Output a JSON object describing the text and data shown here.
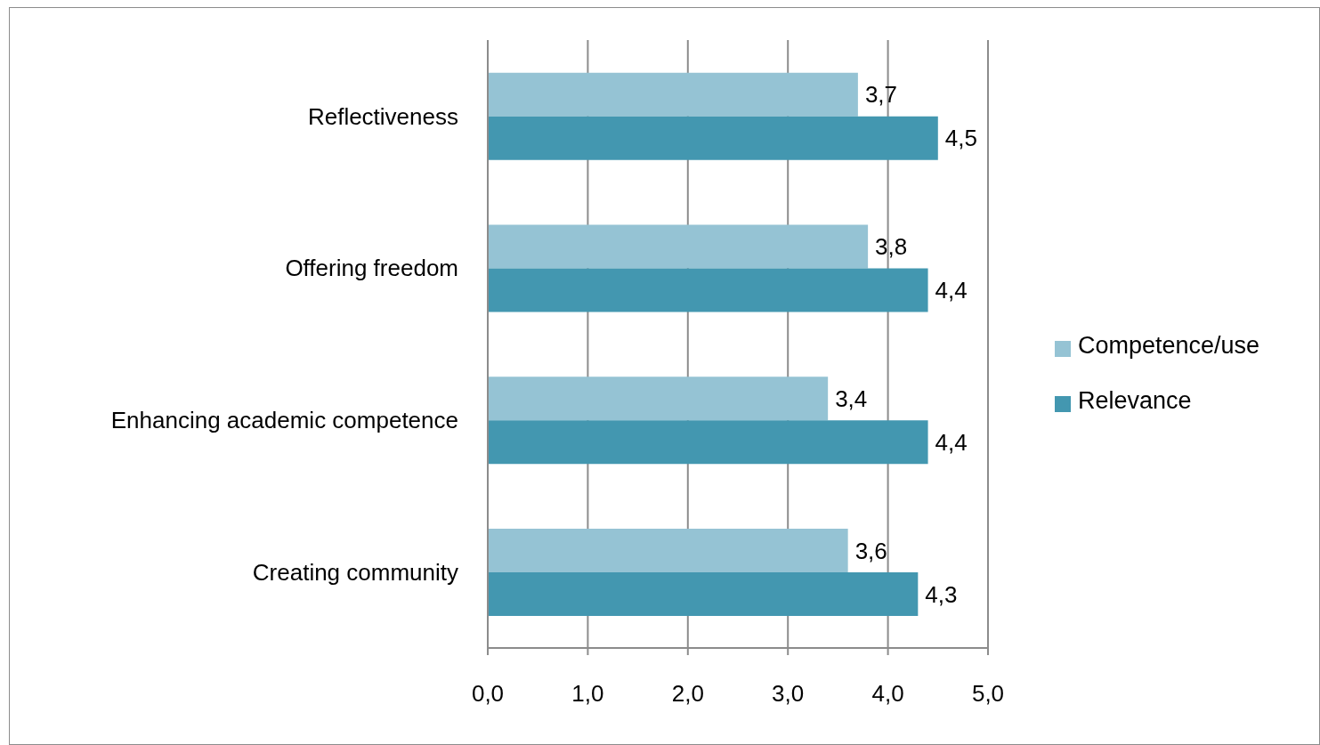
{
  "chart_data": {
    "type": "bar",
    "orientation": "horizontal",
    "categories": [
      "Reflectiveness",
      "Offering freedom",
      "Enhancing academic competence",
      "Creating community"
    ],
    "series": [
      {
        "name": "Competence/use",
        "color": "#95c3d4",
        "values": [
          3.7,
          3.8,
          3.4,
          3.6
        ],
        "value_labels": [
          "3,7",
          "3,8",
          "3,4",
          "3,6"
        ]
      },
      {
        "name": "Relevance",
        "color": "#4397b0",
        "values": [
          4.5,
          4.4,
          4.4,
          4.3
        ],
        "value_labels": [
          "4,5",
          "4,4",
          "4,4",
          "4,3"
        ]
      }
    ],
    "xlim": [
      0,
      5
    ],
    "xticks": [
      {
        "value": 0,
        "label": "0,0"
      },
      {
        "value": 1,
        "label": "1,0"
      },
      {
        "value": 2,
        "label": "2,0"
      },
      {
        "value": 3,
        "label": "3,0"
      },
      {
        "value": 4,
        "label": "4,0"
      },
      {
        "value": 5,
        "label": "5,0"
      }
    ],
    "grid": "x",
    "legend": "right"
  }
}
